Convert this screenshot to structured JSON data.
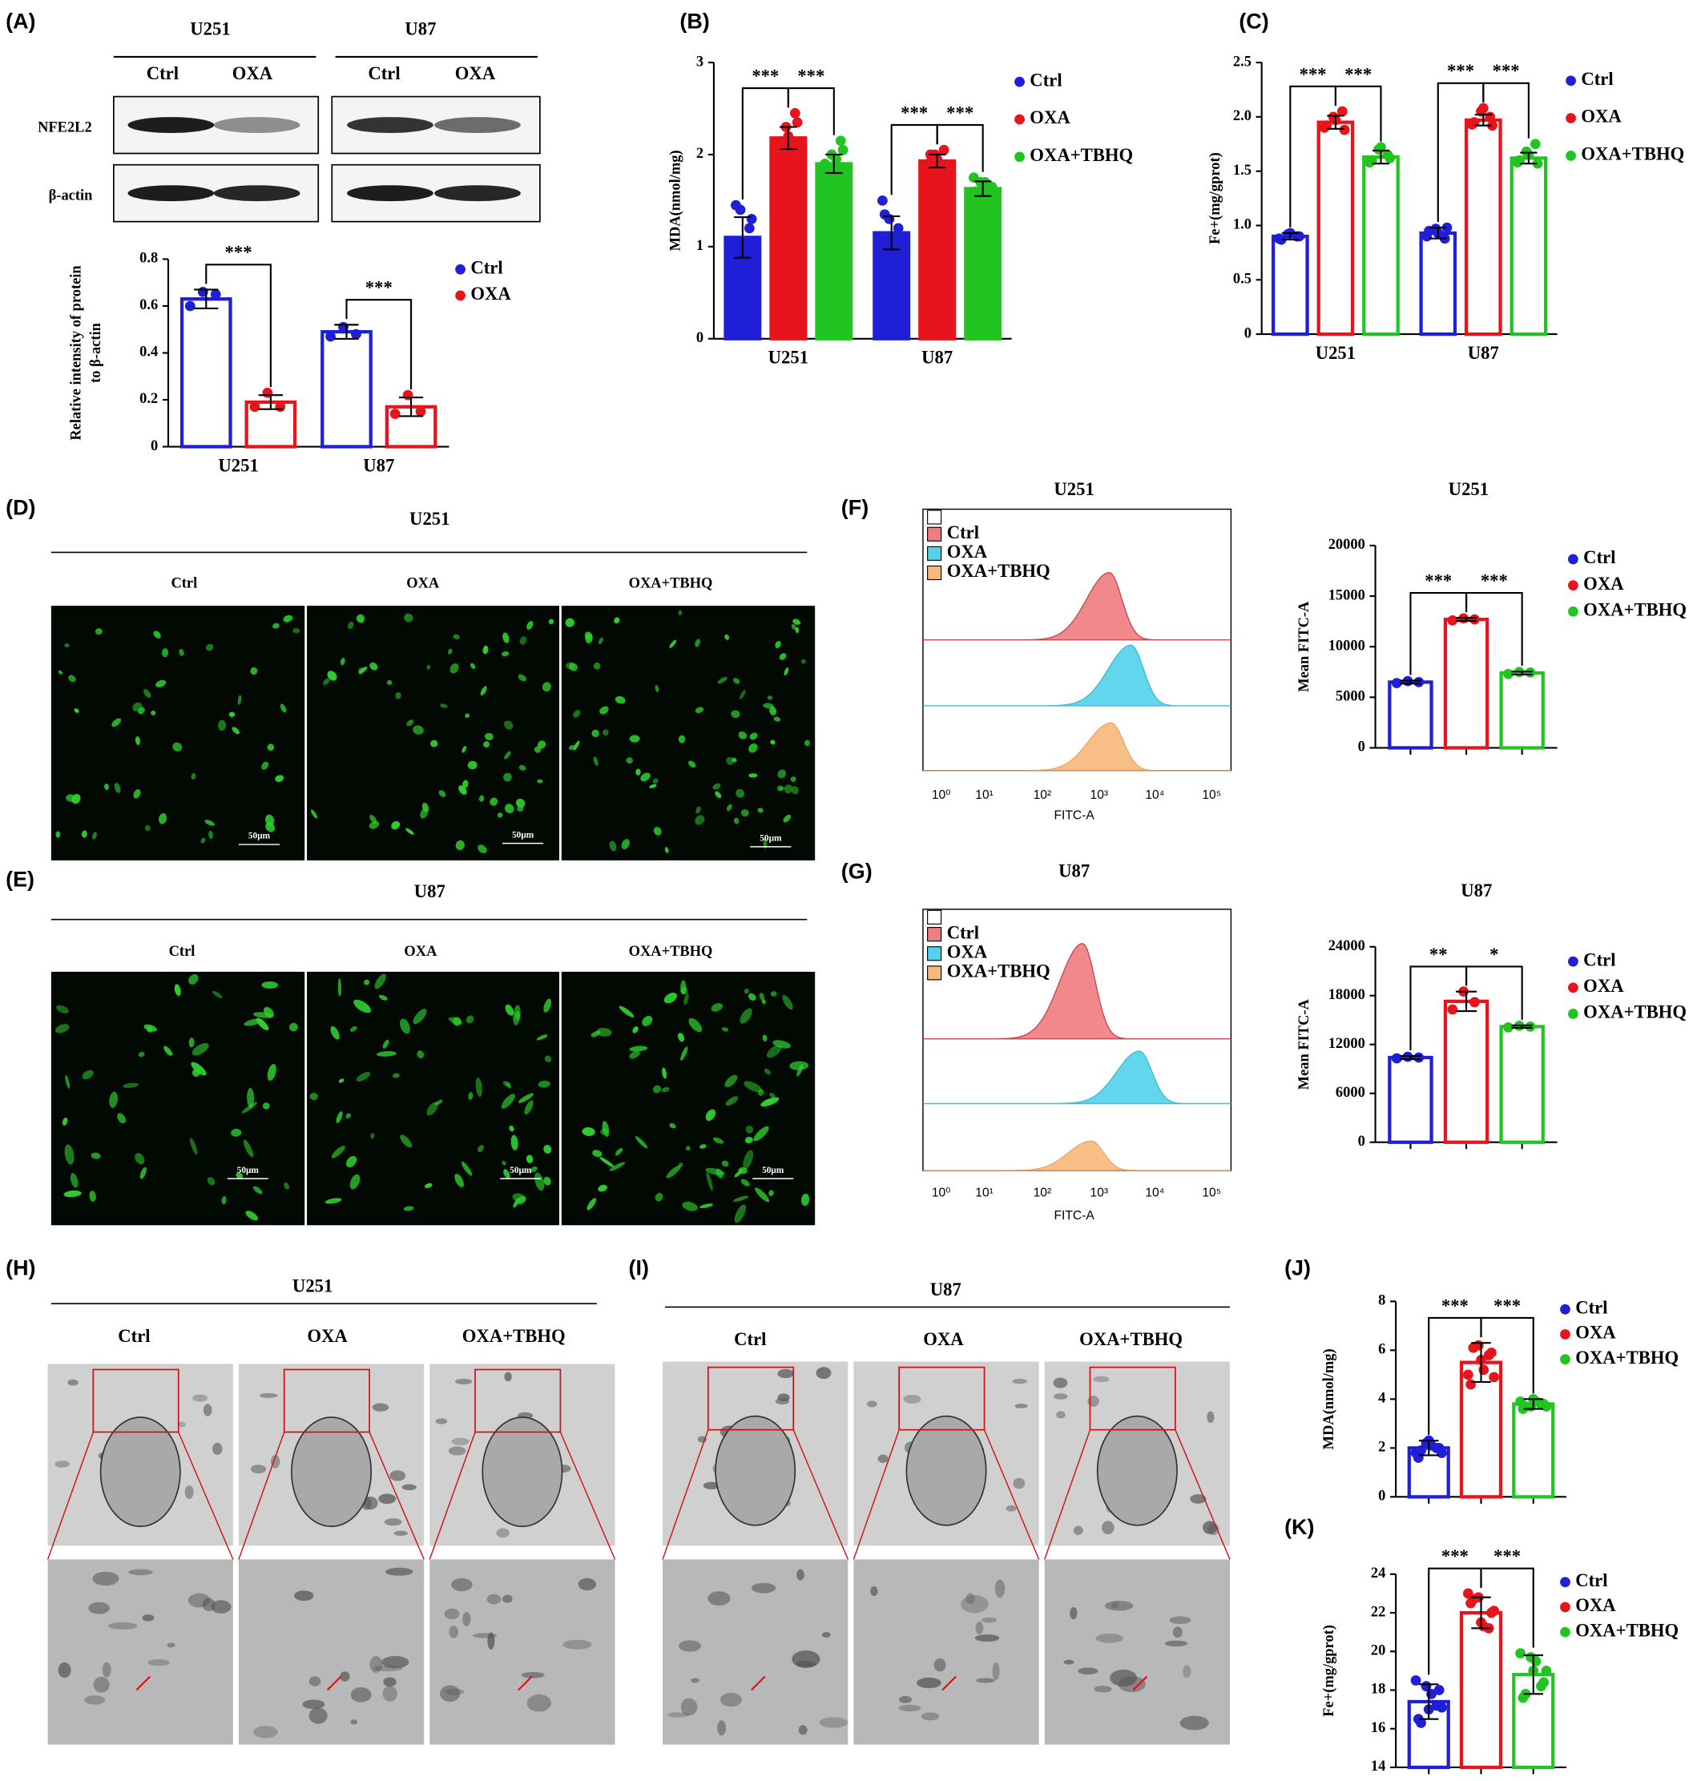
{
  "panel_labels": [
    "(A)",
    "(B)",
    "(C)",
    "(D)",
    "(E)",
    "(F)",
    "(G)",
    "(H)",
    "(I)",
    "(J)",
    "(K)"
  ],
  "western": {
    "cell_lines": [
      "U251",
      "U87"
    ],
    "lanes": [
      "Ctrl",
      "OXA",
      "Ctrl",
      "OXA"
    ],
    "proteins": [
      "NFE2L2",
      "β-actin"
    ]
  },
  "fluorescence": [
    {
      "title": "U251",
      "groups": [
        "Ctrl",
        "OXA",
        "OXA+TBHQ"
      ],
      "scale_bar": "50μm"
    },
    {
      "title": "U87",
      "groups": [
        "Ctrl",
        "OXA",
        "OXA+TBHQ"
      ],
      "scale_bar": "50μm"
    }
  ],
  "flow": [
    {
      "title": "U251",
      "legend": [
        "Ctrl",
        "OXA",
        "OXA+TBHQ"
      ],
      "xlabel": "FITC-A",
      "xticks": [
        "10⁰",
        "10¹",
        "10²",
        "10³",
        "10⁴",
        "10⁵"
      ]
    },
    {
      "title": "U87",
      "legend": [
        "Ctrl",
        "OXA",
        "OXA+TBHQ"
      ],
      "xlabel": "FITC-A",
      "xticks": [
        "10⁰",
        "10¹",
        "10²",
        "10³",
        "10⁴",
        "10⁵"
      ]
    }
  ],
  "tem": [
    {
      "title": "U251",
      "groups": [
        "Ctrl",
        "OXA",
        "OXA+TBHQ"
      ]
    },
    {
      "title": "U87",
      "groups": [
        "Ctrl",
        "OXA",
        "OXA+TBHQ"
      ]
    }
  ],
  "chart_data": [
    {
      "type": "bar",
      "ylabel": [
        "Relative intensity of protein",
        "to β-actin"
      ],
      "categories": [
        "U251",
        "U87"
      ],
      "series": [
        {
          "name": "Ctrl",
          "color": "#1f1fd8",
          "values": [
            0.63,
            0.49
          ],
          "errors": [
            0.04,
            0.03
          ],
          "points": [
            [
              0.6,
              0.66,
              0.65
            ],
            [
              0.47,
              0.51,
              0.48
            ]
          ]
        },
        {
          "name": "OXA",
          "color": "#e8141c",
          "values": [
            0.19,
            0.17
          ],
          "errors": [
            0.03,
            0.04
          ],
          "points": [
            [
              0.17,
              0.23,
              0.17
            ],
            [
              0.14,
              0.22,
              0.15
            ]
          ]
        }
      ],
      "filled": false,
      "ylim": [
        0,
        0.8
      ],
      "yticks": [
        0,
        0.2,
        0.4,
        0.6,
        0.8
      ],
      "annotations": [
        "***",
        "***"
      ]
    },
    {
      "type": "bar",
      "ylabel": "MDA(nmol/mg)",
      "categories": [
        "U251",
        "U87"
      ],
      "series": [
        {
          "name": "Ctrl",
          "color": "#1f1fd8",
          "values": [
            1.1,
            1.15
          ],
          "errors": [
            0.22,
            0.18
          ],
          "points": [
            [
              0.8,
              1.4,
              1.2,
              1.0,
              0.9,
              1.3,
              1.45,
              0.7
            ],
            [
              1.0,
              1.3,
              1.2,
              1.5,
              0.95,
              1.1,
              1.35,
              1.0
            ]
          ]
        },
        {
          "name": "OXA",
          "color": "#e8141c",
          "values": [
            2.18,
            1.93
          ],
          "errors": [
            0.12,
            0.07
          ],
          "points": [
            [
              2.1,
              2.3,
              2.45,
              2.0,
              2.2,
              2.35,
              2.05,
              2.15
            ],
            [
              1.85,
              2.0,
              2.05,
              1.9,
              1.95,
              1.8,
              2.0,
              1.9
            ]
          ]
        },
        {
          "name": "OXA+TBHQ",
          "color": "#22c422",
          "values": [
            1.9,
            1.63
          ],
          "errors": [
            0.1,
            0.08
          ],
          "points": [
            [
              1.8,
              2.0,
              2.15,
              1.9,
              1.85,
              2.05,
              1.75,
              1.95
            ],
            [
              1.55,
              1.7,
              1.6,
              1.75,
              1.5,
              1.65,
              1.6,
              1.7
            ]
          ]
        }
      ],
      "filled": true,
      "ylim": [
        0,
        3
      ],
      "yticks": [
        0,
        1,
        2,
        3
      ],
      "annotations": [
        "***",
        "***",
        "***",
        "***"
      ]
    },
    {
      "type": "bar",
      "ylabel": "Fe+(mg/gprot)",
      "categories": [
        "U251",
        "U87"
      ],
      "series": [
        {
          "name": "Ctrl",
          "color": "#1f1fd8",
          "values": [
            0.9,
            0.93
          ],
          "errors": [
            0.03,
            0.05
          ],
          "points": [
            [
              0.88,
              0.92,
              0.9,
              0.87,
              0.93,
              0.9
            ],
            [
              0.9,
              0.97,
              0.88,
              0.95,
              0.93,
              0.98
            ]
          ]
        },
        {
          "name": "OXA",
          "color": "#e8141c",
          "values": [
            1.95,
            1.97
          ],
          "errors": [
            0.06,
            0.05
          ],
          "points": [
            [
              1.9,
              2.0,
              2.05,
              1.92,
              1.97,
              1.88
            ],
            [
              1.93,
              2.05,
              2.0,
              1.95,
              2.08,
              1.92
            ]
          ]
        },
        {
          "name": "OXA+TBHQ",
          "color": "#22c422",
          "values": [
            1.63,
            1.62
          ],
          "errors": [
            0.06,
            0.05
          ],
          "points": [
            [
              1.58,
              1.7,
              1.65,
              1.6,
              1.72,
              1.62
            ],
            [
              1.58,
              1.68,
              1.75,
              1.6,
              1.65,
              1.57
            ]
          ]
        }
      ],
      "filled": false,
      "ylim": [
        0,
        2.5
      ],
      "yticks": [
        0,
        0.5,
        {
          "value": 1,
          "label": "1.0"
        },
        1.5,
        {
          "value": 2,
          "label": "2.0"
        },
        2.5
      ],
      "annotations": [
        "***",
        "***",
        "***",
        "***"
      ]
    },
    {
      "type": "bar",
      "title": "U251",
      "ylabel": "Mean FITC-A",
      "categories": [
        null
      ],
      "series": [
        {
          "name": "Ctrl",
          "color": "#1f1fd8",
          "values": [
            6500
          ],
          "errors": [
            150
          ],
          "points": [
            [
              6400,
              6600,
              6500
            ]
          ]
        },
        {
          "name": "OXA",
          "color": "#e8141c",
          "values": [
            12700
          ],
          "errors": [
            150
          ],
          "points": [
            [
              12600,
              12800,
              12700
            ]
          ]
        },
        {
          "name": "OXA+TBHQ",
          "color": "#22c422",
          "values": [
            7400
          ],
          "errors": [
            150
          ],
          "points": [
            [
              7300,
              7500,
              7450
            ]
          ]
        }
      ],
      "filled": false,
      "ylim": [
        0,
        20000
      ],
      "yticks": [
        0,
        5000,
        10000,
        15000,
        20000
      ],
      "annotations": [
        "***",
        "***"
      ]
    },
    {
      "type": "bar",
      "title": "U87",
      "ylabel": "Mean FITC-A",
      "categories": [
        null
      ],
      "series": [
        {
          "name": "Ctrl",
          "color": "#1f1fd8",
          "values": [
            10400
          ],
          "errors": [
            200
          ],
          "points": [
            [
              10300,
              10500,
              10400
            ]
          ]
        },
        {
          "name": "OXA",
          "color": "#e8141c",
          "values": [
            17300
          ],
          "errors": [
            1200
          ],
          "points": [
            [
              16300,
              18500,
              17200
            ]
          ]
        },
        {
          "name": "OXA+TBHQ",
          "color": "#22c422",
          "values": [
            14200
          ],
          "errors": [
            150
          ],
          "points": [
            [
              14100,
              14300,
              14200
            ]
          ]
        }
      ],
      "filled": false,
      "ylim": [
        0,
        24000
      ],
      "yticks": [
        0,
        6000,
        12000,
        18000,
        24000
      ],
      "annotations": [
        "**",
        "*"
      ]
    },
    {
      "type": "bar",
      "ylabel": "MDA(nmol/mg)",
      "categories": [
        null
      ],
      "series": [
        {
          "name": "Ctrl",
          "color": "#1f1fd8",
          "values": [
            2.0
          ],
          "errors": [
            0.3
          ],
          "points": [
            [
              1.8,
              2.2,
              2.0,
              1.6,
              2.3,
              2.0,
              1.9,
              2.1,
              1.8
            ]
          ]
        },
        {
          "name": "OXA",
          "color": "#e8141c",
          "values": [
            5.5
          ],
          "errors": [
            0.8
          ],
          "points": [
            [
              5.0,
              6.2,
              5.8,
              4.6,
              5.6,
              5.9,
              6.1,
              5.2,
              4.9
            ]
          ]
        },
        {
          "name": "OXA+TBHQ",
          "color": "#22c422",
          "values": [
            3.8
          ],
          "errors": [
            0.2
          ],
          "points": [
            [
              3.9,
              3.7,
              3.8,
              3.6,
              4.0,
              3.8,
              3.7,
              3.9,
              3.7
            ]
          ]
        }
      ],
      "filled": false,
      "ylim": [
        0,
        8
      ],
      "yticks": [
        0,
        2,
        4,
        6,
        8
      ],
      "annotations": [
        "***",
        "***"
      ]
    },
    {
      "type": "bar",
      "ylabel": "Fe+(mg/gprot)",
      "categories": [
        null
      ],
      "series": [
        {
          "name": "Ctrl",
          "color": "#1f1fd8",
          "values": [
            17.4
          ],
          "errors": [
            0.9
          ],
          "points": [
            [
              18.5,
              18.2,
              17.2,
              16.5,
              17.0,
              18.0,
              16.3,
              17.8,
              17.1
            ]
          ]
        },
        {
          "name": "OXA",
          "color": "#e8141c",
          "values": [
            22.0
          ],
          "errors": [
            0.8
          ],
          "points": [
            [
              23.0,
              22.8,
              21.2,
              22.5,
              21.5,
              22.0,
              22.7,
              21.3,
              22.1
            ]
          ]
        },
        {
          "name": "OXA+TBHQ",
          "color": "#22c422",
          "values": [
            18.8
          ],
          "errors": [
            1.0
          ],
          "points": [
            [
              19.9,
              19.7,
              18.2,
              17.6,
              19.0,
              18.4,
              17.8,
              19.5,
              19.0
            ]
          ]
        }
      ],
      "filled": false,
      "ylim": [
        14,
        24
      ],
      "yticks": [
        14,
        16,
        18,
        20,
        22,
        24
      ],
      "annotations": [
        "***",
        "***"
      ]
    }
  ]
}
